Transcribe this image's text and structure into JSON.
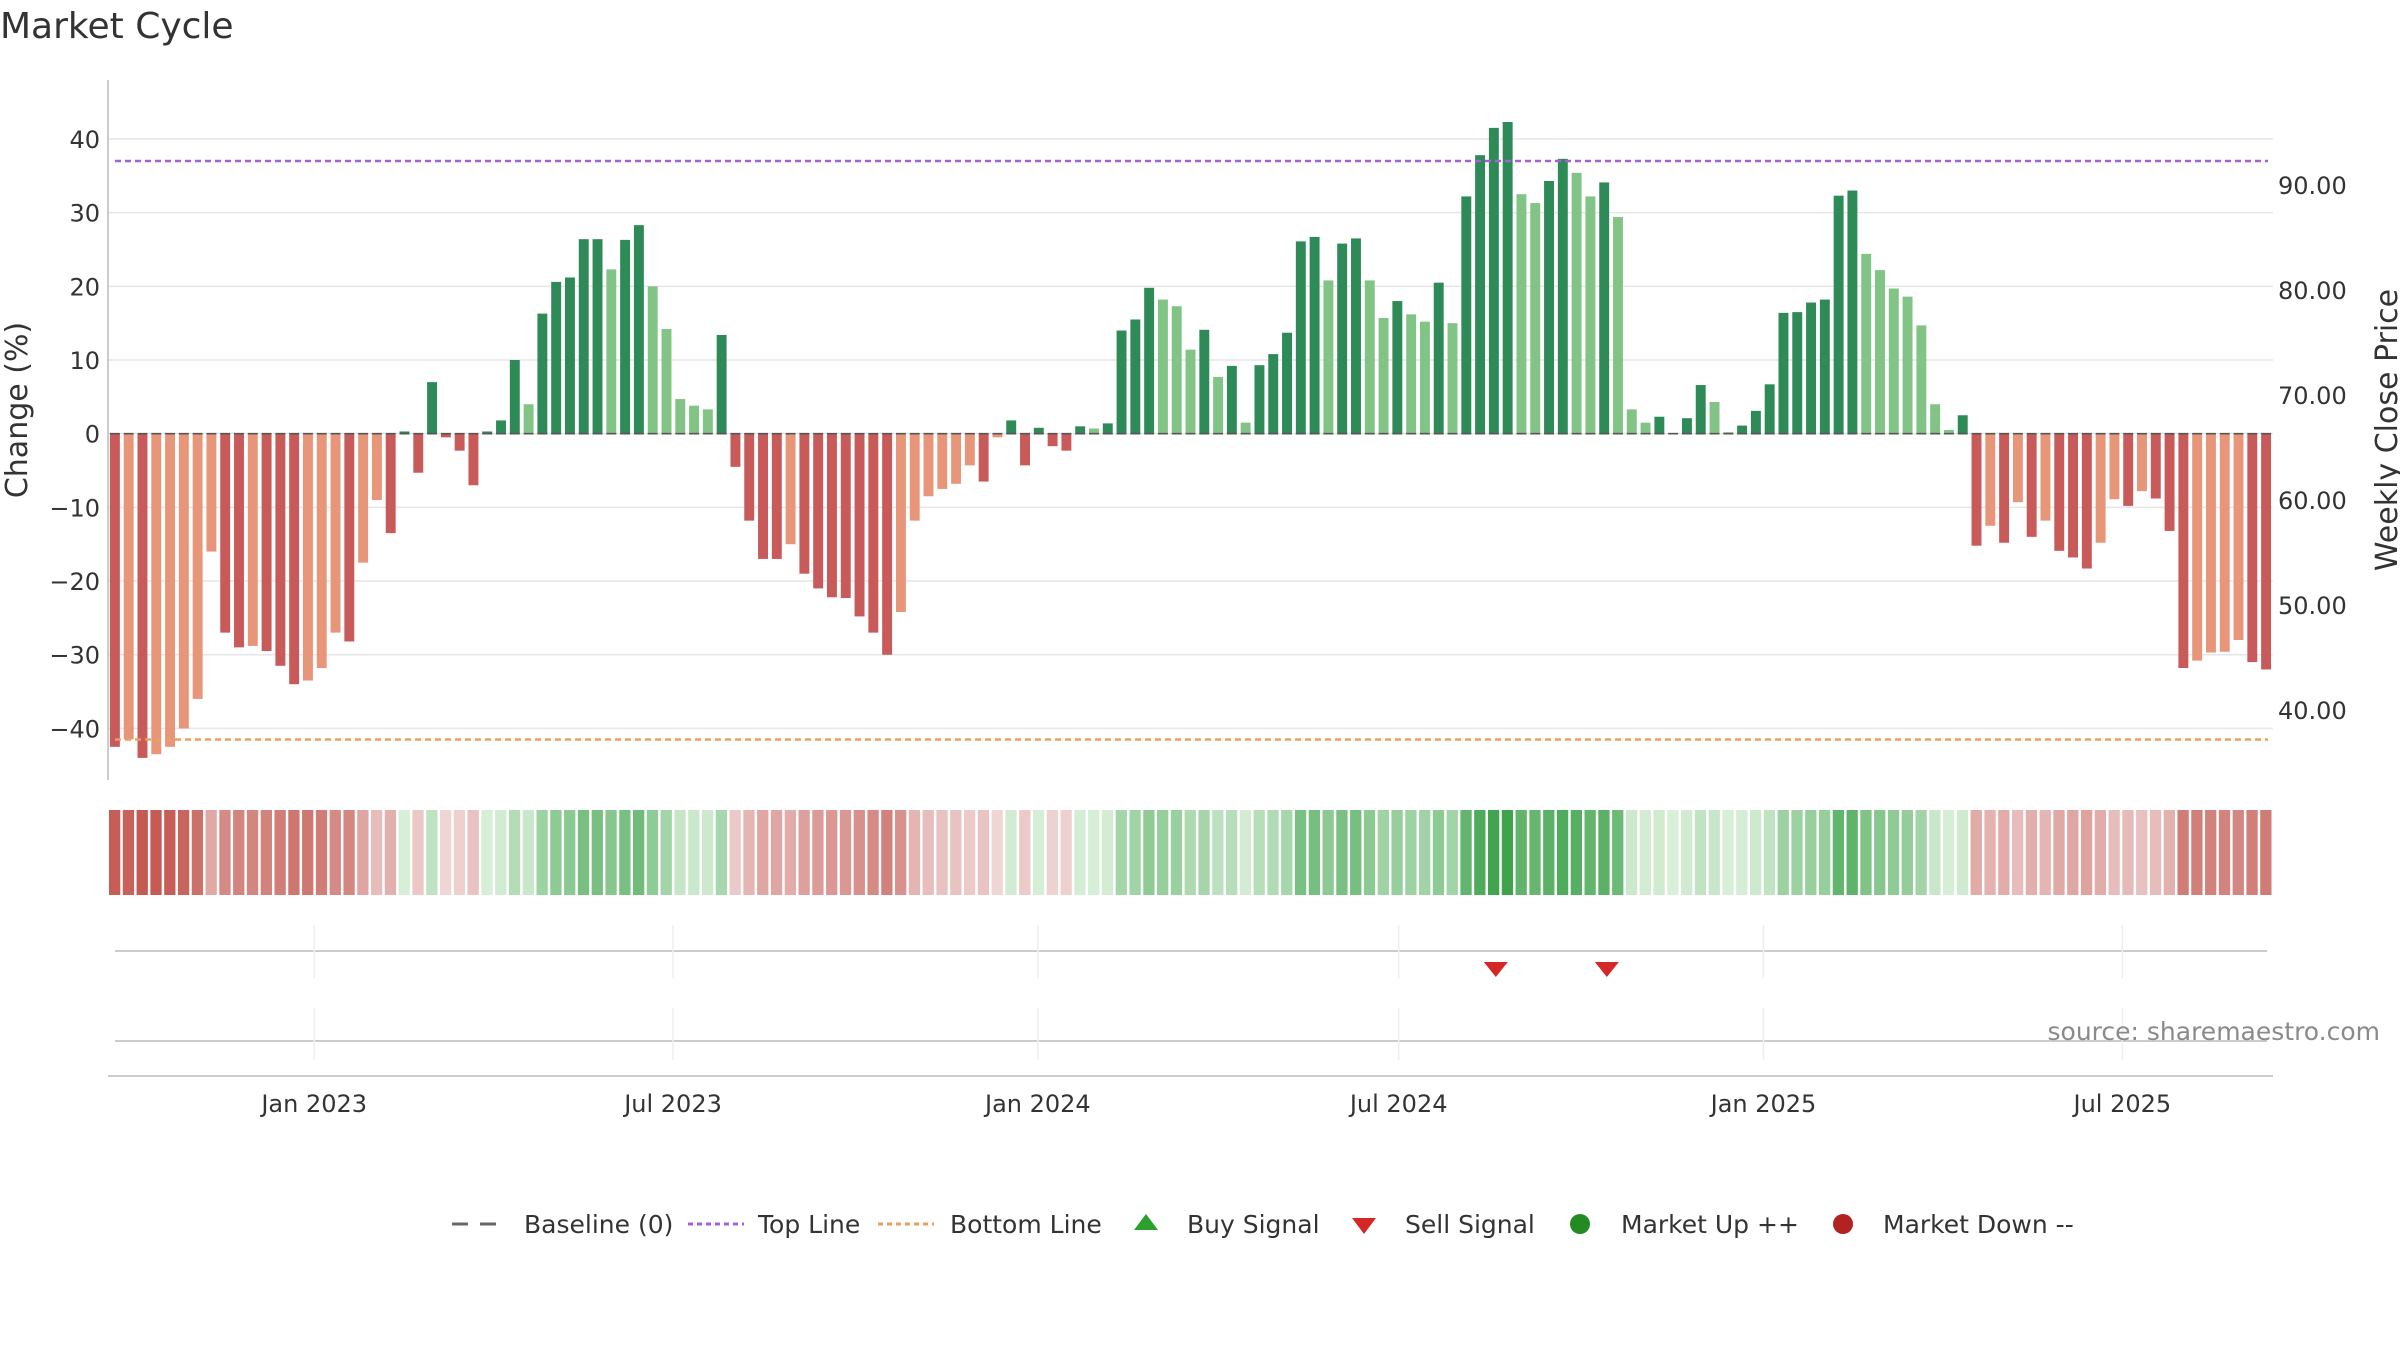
{
  "chart_data": {
    "type": "bar",
    "title": "Market Cycle",
    "ylabel_left": "Change (%)",
    "ylabel_right": "Weekly Close Price",
    "ylim": [
      -47,
      48
    ],
    "yticks": [
      -40,
      -30,
      -20,
      -10,
      0,
      10,
      20,
      30,
      40
    ],
    "y2lim": [
      33.33,
      100
    ],
    "y2ticks": [
      "40.00",
      "50.00",
      "60.00",
      "70.00",
      "80.00",
      "90.00"
    ],
    "x_start": "2022-09-19",
    "x_end": "2025-09-15",
    "xticks": [
      {
        "date": "2023-01-01",
        "label": "Jan 2023"
      },
      {
        "date": "2023-07-01",
        "label": "Jul 2023"
      },
      {
        "date": "2024-01-01",
        "label": "Jan 2024"
      },
      {
        "date": "2024-07-01",
        "label": "Jul 2024"
      },
      {
        "date": "2025-01-01",
        "label": "Jan 2025"
      },
      {
        "date": "2025-07-01",
        "label": "Jul 2025"
      }
    ],
    "top_line": 37,
    "bottom_line": -41.5,
    "series": [
      {
        "values": [
          -42.5,
          -41.5,
          -44,
          -43.5,
          -42.5,
          -40,
          -36,
          -16,
          -27,
          -29,
          -28.8,
          -29.5,
          -31.5,
          -34,
          -33.5,
          -31.8,
          -27,
          -28.2,
          -17.5,
          -9,
          -13.5,
          0.3,
          -5.3,
          7,
          -0.5,
          -2.3,
          -7,
          0.3,
          1.8,
          10,
          4,
          16.3,
          20.6,
          21.2,
          26.4,
          26.4,
          22.3,
          26.3,
          28.3,
          20,
          14.2,
          4.7,
          3.8,
          3.3,
          13.4,
          -4.5,
          -11.8,
          -17,
          -17,
          -15,
          -19,
          -21,
          -22.2,
          -22.3,
          -24.8,
          -27,
          -30,
          -24.2,
          -11.8,
          -8.5,
          -7.5,
          -6.8,
          -4.3,
          -6.5,
          -0.5,
          1.8,
          -4.3,
          0.8,
          -1.7,
          -2.3,
          1,
          0.7,
          1.4,
          14,
          15.5,
          19.8,
          18.2,
          17.3,
          11.4,
          14.1,
          7.7,
          9.2,
          1.5,
          9.3,
          10.8,
          13.7,
          26.1,
          26.7,
          20.8,
          25.8,
          26.5,
          20.8,
          15.7,
          18,
          16.2,
          15.2,
          20.5,
          15,
          32.2,
          37.8,
          41.5,
          42.3,
          32.5,
          31.3,
          34.3,
          37.3,
          35.4,
          32.2,
          34.1,
          29.4,
          3.3,
          1.5,
          2.3,
          0.1,
          2.1,
          6.6,
          4.3,
          0.2,
          1.1,
          3.1,
          6.7,
          16.4,
          16.5,
          17.8,
          18.2,
          32.3,
          33,
          24.4,
          22.2,
          19.7,
          18.6,
          14.7,
          4,
          0.5,
          2.5,
          -15.2,
          -12.5,
          -14.8,
          -9.3,
          -14,
          -11.8,
          -15.9,
          -16.8,
          -18.3,
          -14.8,
          -8.9,
          -9.8,
          -7.8,
          -8.8,
          -13.2,
          -31.8,
          -30.8,
          -29.7,
          -29.6,
          -28,
          -31,
          -32
        ]
      }
    ],
    "signals": {
      "buy": [],
      "sell": [
        "2024-08-19",
        "2024-10-14"
      ],
      "market_up": [],
      "market_down": []
    },
    "colors": {
      "strong_up": "#2e8b57",
      "weak_up": "#82c485",
      "strong_down": "#c85a5a",
      "weak_down": "#e8967a",
      "top_line": "#a660d8",
      "bottom_line": "#e8a060",
      "sell": "#d62728",
      "buy": "#2ca02c",
      "market_up": "#228b22",
      "market_down": "#b22222"
    },
    "legend": [
      "Baseline (0)",
      "Top Line",
      "Bottom Line",
      "Buy Signal",
      "Sell Signal",
      "Market Up ++",
      "Market Down --"
    ],
    "legend_position": "bottom-center",
    "annotation": "source: sharemaestro.com",
    "grid": true
  }
}
